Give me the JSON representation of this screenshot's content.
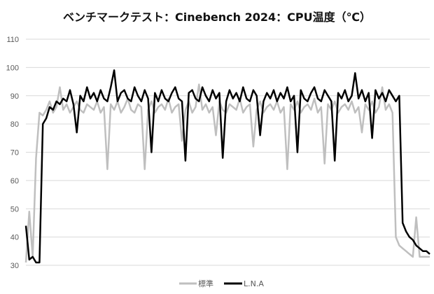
{
  "chart_data": {
    "type": "line",
    "title": "ベンチマークテスト：Cinebench 2024：CPU温度（℃）",
    "xlabel": "",
    "ylabel": "",
    "ylim": [
      30,
      110
    ],
    "yticks": [
      30,
      40,
      50,
      60,
      70,
      80,
      90,
      100,
      110
    ],
    "grid": true,
    "legend": "bottom",
    "series": [
      {
        "name": "標準",
        "color": "#bfbfbf",
        "values": [
          31,
          49,
          33,
          68,
          84,
          83,
          85,
          88,
          84,
          86,
          93,
          85,
          87,
          84,
          86,
          88,
          85,
          84,
          87,
          86,
          85,
          88,
          84,
          86,
          64,
          87,
          85,
          88,
          84,
          86,
          89,
          85,
          84,
          87,
          86,
          64,
          85,
          88,
          84,
          86,
          87,
          85,
          89,
          84,
          86,
          87,
          74,
          85,
          88,
          84,
          86,
          94,
          85,
          87,
          84,
          86,
          76,
          88,
          85,
          84,
          87,
          86,
          85,
          89,
          84,
          86,
          87,
          72,
          85,
          88,
          84,
          86,
          87,
          85,
          88,
          84,
          86,
          64,
          87,
          85,
          88,
          84,
          86,
          87,
          85,
          89,
          84,
          86,
          66,
          87,
          85,
          88,
          84,
          86,
          87,
          85,
          88,
          84,
          86,
          77,
          87,
          85,
          88,
          84,
          86,
          93,
          85,
          87,
          84,
          40,
          37,
          36,
          35,
          34,
          33,
          47,
          33,
          33,
          33,
          33
        ]
      },
      {
        "name": "L.N.A",
        "color": "#000000",
        "values": [
          44,
          32,
          33,
          31,
          31,
          80,
          82,
          86,
          85,
          88,
          87,
          89,
          88,
          92,
          87,
          77,
          90,
          88,
          93,
          89,
          91,
          88,
          92,
          89,
          88,
          93,
          99,
          88,
          91,
          92,
          89,
          88,
          93,
          90,
          88,
          92,
          89,
          70,
          91,
          88,
          92,
          89,
          88,
          91,
          93,
          89,
          88,
          67,
          91,
          92,
          89,
          88,
          93,
          90,
          88,
          92,
          89,
          91,
          68,
          88,
          92,
          89,
          91,
          88,
          93,
          89,
          88,
          92,
          90,
          76,
          88,
          91,
          89,
          92,
          88,
          91,
          89,
          93,
          88,
          90,
          70,
          92,
          89,
          88,
          91,
          93,
          89,
          88,
          92,
          90,
          88,
          67,
          91,
          89,
          92,
          88,
          90,
          98,
          89,
          92,
          88,
          91,
          75,
          92,
          89,
          91,
          88,
          92,
          90,
          88,
          90,
          45,
          42,
          40,
          39,
          37,
          36,
          35,
          35,
          34
        ]
      }
    ]
  }
}
